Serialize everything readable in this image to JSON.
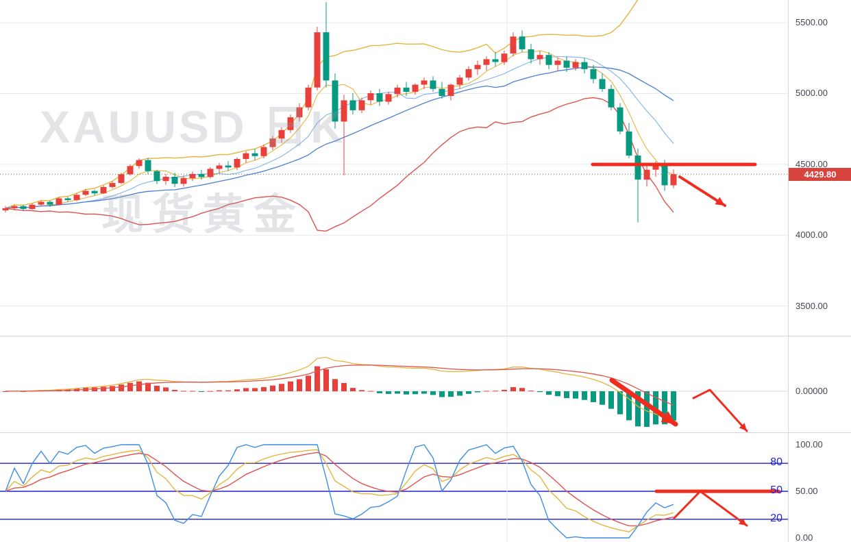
{
  "watermark": {
    "line1": "XAUUSD 日K",
    "line2": "现货黄金"
  },
  "colors": {
    "up": "#e8413c",
    "down": "#089981",
    "grid": "#e7e9ee",
    "axis_text": "#434651",
    "separator": "#d1d4dc",
    "annotation": "#ef2d1f",
    "last_price_line": "#666666",
    "badge_bg": "#d7443e",
    "level_blue": "#2020d0"
  },
  "chart_data": [
    {
      "id": "price",
      "type": "candlestick",
      "symbol": "XAUUSD",
      "period_label": "日K",
      "ylim": [
        3290,
        5660
      ],
      "yticks": [
        {
          "v": 5500,
          "label": "5500.00"
        },
        {
          "v": 5000,
          "label": "5000.00"
        },
        {
          "v": 4500,
          "label": "4500.00"
        },
        {
          "v": 4000,
          "label": "4000.00"
        },
        {
          "v": 3500,
          "label": "3500.00"
        }
      ],
      "vgrid_x": 740,
      "last_price": 4429.8,
      "last_price_label": "4429.80",
      "candles": [
        [
          4175,
          4205,
          4160,
          4190
        ],
        [
          4190,
          4215,
          4175,
          4205
        ],
        [
          4205,
          4215,
          4170,
          4185
        ],
        [
          4185,
          4225,
          4180,
          4215
        ],
        [
          4215,
          4245,
          4205,
          4235
        ],
        [
          4235,
          4245,
          4200,
          4215
        ],
        [
          4215,
          4270,
          4210,
          4260
        ],
        [
          4260,
          4270,
          4235,
          4248
        ],
        [
          4248,
          4295,
          4240,
          4285
        ],
        [
          4285,
          4325,
          4275,
          4312
        ],
        [
          4312,
          4322,
          4280,
          4295
        ],
        [
          4295,
          4350,
          4290,
          4340
        ],
        [
          4340,
          4380,
          4330,
          4368
        ],
        [
          4368,
          4440,
          4360,
          4430
        ],
        [
          4430,
          4500,
          4420,
          4488
        ],
        [
          4488,
          4542,
          4470,
          4530
        ],
        [
          4530,
          4545,
          4430,
          4452
        ],
        [
          4452,
          4462,
          4360,
          4382
        ],
        [
          4382,
          4432,
          4355,
          4412
        ],
        [
          4412,
          4440,
          4340,
          4362
        ],
        [
          4362,
          4420,
          4342,
          4402
        ],
        [
          4402,
          4450,
          4382,
          4432
        ],
        [
          4432,
          4462,
          4392,
          4410
        ],
        [
          4410,
          4480,
          4400,
          4468
        ],
        [
          4468,
          4510,
          4440,
          4492
        ],
        [
          4492,
          4522,
          4452,
          4478
        ],
        [
          4478,
          4550,
          4460,
          4538
        ],
        [
          4538,
          4592,
          4512,
          4578
        ],
        [
          4578,
          4610,
          4530,
          4558
        ],
        [
          4558,
          4640,
          4542,
          4622
        ],
        [
          4622,
          4700,
          4602,
          4682
        ],
        [
          4682,
          4762,
          4652,
          4742
        ],
        [
          4742,
          4852,
          4722,
          4832
        ],
        [
          4832,
          4930,
          4802,
          4902
        ],
        [
          4902,
          5062,
          4882,
          5042
        ],
        [
          5042,
          5470,
          5022,
          5432
        ],
        [
          5432,
          5645,
          5042,
          5092
        ],
        [
          5092,
          5142,
          4752,
          4802
        ],
        [
          4802,
          4992,
          4422,
          4952
        ],
        [
          4952,
          5002,
          4852,
          4882
        ],
        [
          4882,
          4972,
          4862,
          4952
        ],
        [
          4952,
          5022,
          4922,
          5002
        ],
        [
          5002,
          5032,
          4912,
          4942
        ],
        [
          4942,
          5012,
          4922,
          4996
        ],
        [
          4996,
          5062,
          4972,
          5042
        ],
        [
          5042,
          5082,
          4982,
          5012
        ],
        [
          5012,
          5072,
          4992,
          5062
        ],
        [
          5062,
          5112,
          5032,
          5092
        ],
        [
          5092,
          5122,
          5012,
          5032
        ],
        [
          5032,
          5082,
          4962,
          4982
        ],
        [
          4982,
          5072,
          4952,
          5062
        ],
        [
          5062,
          5132,
          5032,
          5112
        ],
        [
          5112,
          5192,
          5092,
          5172
        ],
        [
          5172,
          5232,
          5132,
          5202
        ],
        [
          5202,
          5262,
          5162,
          5242
        ],
        [
          5242,
          5292,
          5192,
          5222
        ],
        [
          5222,
          5302,
          5202,
          5282
        ],
        [
          5282,
          5432,
          5262,
          5402
        ],
        [
          5402,
          5445,
          5292,
          5312
        ],
        [
          5312,
          5352,
          5212,
          5242
        ],
        [
          5242,
          5302,
          5202,
          5272
        ],
        [
          5272,
          5292,
          5172,
          5202
        ],
        [
          5202,
          5252,
          5162,
          5232
        ],
        [
          5232,
          5262,
          5152,
          5182
        ],
        [
          5182,
          5242,
          5162,
          5222
        ],
        [
          5222,
          5252,
          5142,
          5172
        ],
        [
          5172,
          5202,
          5072,
          5102
        ],
        [
          5102,
          5142,
          5012,
          5032
        ],
        [
          5032,
          5062,
          4882,
          4902
        ],
        [
          4902,
          4932,
          4712,
          4732
        ],
        [
          4732,
          4792,
          4542,
          4562
        ],
        [
          4562,
          4612,
          4090,
          4392
        ],
        [
          4392,
          4492,
          4342,
          4462
        ],
        [
          4462,
          4522,
          4412,
          4502
        ],
        [
          4502,
          4532,
          4312,
          4352
        ],
        [
          4352,
          4465,
          4332,
          4429.8
        ]
      ],
      "overlays": {
        "sma": [
          {
            "window": 5,
            "color": "#e5b43c",
            "width": 1.1
          },
          {
            "window": 10,
            "color": "#7fb3e8",
            "width": 1.1
          },
          {
            "window": 20,
            "color": "#4a7fd0",
            "width": 1.3
          }
        ],
        "bollinger": {
          "window": 20,
          "mult": 2.2,
          "upper_color": "#e5b43c",
          "lower_color": "#e0524e",
          "width": 1.4
        }
      },
      "annotations": [
        {
          "points": [
            [
              865,
              240
            ],
            [
              1102,
              240
            ]
          ],
          "width": 5,
          "arrow": false
        },
        {
          "points": [
            [
              992,
              258
            ],
            [
              1058,
              300
            ]
          ],
          "width": 4,
          "arrow": true
        }
      ]
    },
    {
      "id": "macd",
      "type": "macd",
      "params": {
        "fast": 12,
        "slow": 26,
        "signal": 9
      },
      "zero_frac": 0.57,
      "yticks": [
        {
          "v": 0,
          "label": "0.00000"
        }
      ],
      "colors": {
        "dif": "#e5b43c",
        "dea": "#e0524e",
        "hist_up": "#e8413c",
        "hist_down": "#089981"
      },
      "annotations": [
        {
          "points": [
            [
              893,
              64
            ],
            [
              986,
              128
            ]
          ],
          "width": 7,
          "arrow": true
        },
        {
          "points": [
            [
              1012,
              90
            ],
            [
              1036,
              78
            ],
            [
              1090,
              138
            ]
          ],
          "width": 3,
          "arrow": true
        }
      ]
    },
    {
      "id": "kdj",
      "type": "oscillator",
      "params": {
        "length": 9,
        "smooth_k": 3,
        "smooth_d": 3
      },
      "range": [
        0,
        100
      ],
      "yticks": [
        {
          "v": 100,
          "label": "100.00"
        },
        {
          "v": 50,
          "label": "50.00"
        },
        {
          "v": 0,
          "label": "0.00"
        }
      ],
      "levels": [
        {
          "v": 80,
          "label": "80"
        },
        {
          "v": 50,
          "label": "50"
        },
        {
          "v": 20,
          "label": "20"
        }
      ],
      "colors": {
        "j": "#3c8ce6",
        "k": "#e5b43c",
        "d": "#e0524e"
      },
      "annotations": [
        {
          "points": [
            [
              958,
              85
            ],
            [
              1136,
              85
            ]
          ],
          "width": 5,
          "arrow": false
        },
        {
          "points": [
            [
              984,
              124
            ],
            [
              1022,
              85
            ],
            [
              1090,
              135
            ]
          ],
          "width": 3,
          "arrow": true
        }
      ]
    }
  ]
}
